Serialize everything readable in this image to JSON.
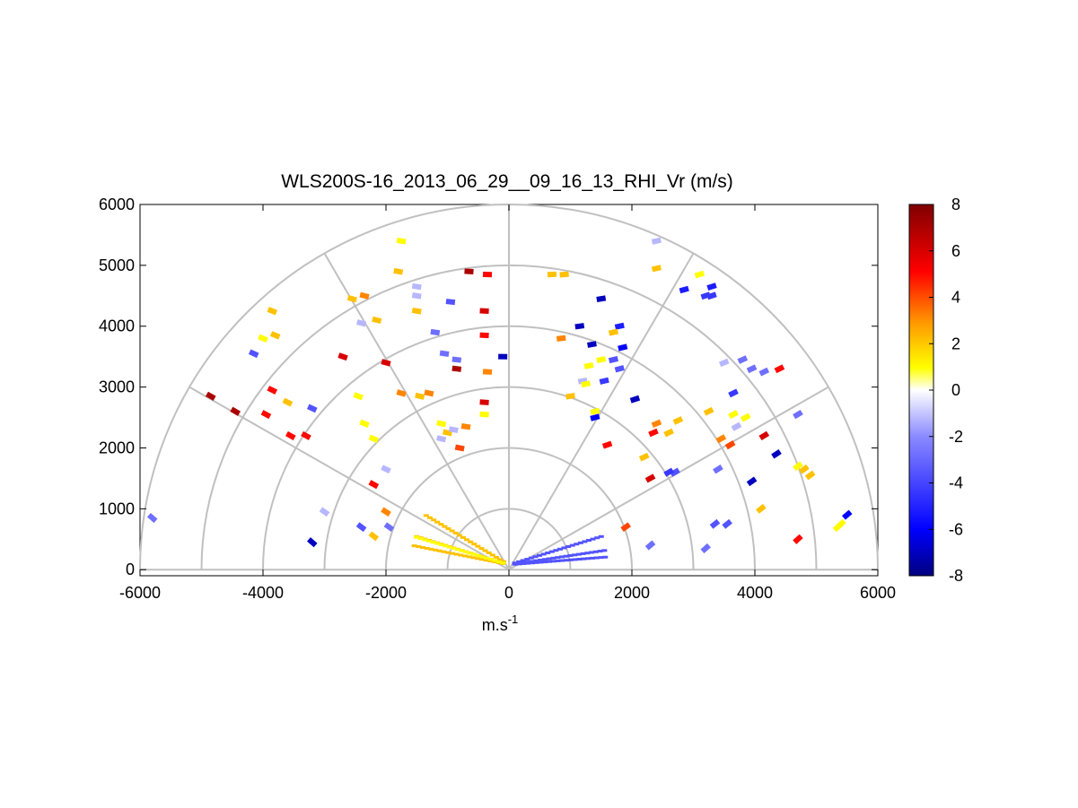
{
  "chart_data": {
    "type": "scatter",
    "title": "WLS200S-16_2013_06_29__09_16_13_RHI_Vr (m/s)",
    "xlabel": "m.s",
    "xlabel_superscript": "-1",
    "ylabel": "",
    "xlim": [
      -6000,
      6000
    ],
    "ylim": [
      -100,
      6000
    ],
    "xticks": [
      -6000,
      -4000,
      -2000,
      0,
      2000,
      4000,
      6000
    ],
    "yticks": [
      0,
      1000,
      2000,
      3000,
      4000,
      5000,
      6000
    ],
    "grid": "polar",
    "polar_rings": [
      1000,
      2000,
      3000,
      4000,
      5000,
      6000
    ],
    "polar_spokes_deg": [
      0,
      30,
      60,
      90,
      120,
      150,
      180
    ],
    "colorbar": {
      "min": -8,
      "max": 8,
      "ticks": [
        8,
        6,
        4,
        2,
        0,
        -2,
        -4,
        -6,
        -8
      ],
      "colormap": "blue-white-yellow-red",
      "stops": [
        "#00007f",
        "#0000ff",
        "#6f6fff",
        "#ffffff",
        "#ffff00",
        "#ff8c00",
        "#ff0000",
        "#7f0000"
      ]
    },
    "points": [
      [
        -5800,
        850,
        -2
      ],
      [
        -4850,
        2850,
        7
      ],
      [
        -4450,
        2600,
        7
      ],
      [
        -3850,
        2950,
        5
      ],
      [
        -3600,
        2750,
        2
      ],
      [
        -3550,
        2200,
        5
      ],
      [
        -3300,
        2200,
        5
      ],
      [
        -3200,
        2650,
        -3
      ],
      [
        -3200,
        450,
        -7
      ],
      [
        -3000,
        950,
        -1
      ],
      [
        -3950,
        2550,
        5
      ],
      [
        -4000,
        3800,
        1
      ],
      [
        -3800,
        3850,
        2
      ],
      [
        -3850,
        4250,
        2
      ],
      [
        -4150,
        3550,
        -3
      ],
      [
        -2700,
        3500,
        6
      ],
      [
        -2450,
        2850,
        1
      ],
      [
        -2350,
        2400,
        1
      ],
      [
        -2200,
        2150,
        1
      ],
      [
        -2200,
        1400,
        5
      ],
      [
        -2400,
        700,
        -3
      ],
      [
        -2200,
        550,
        2
      ],
      [
        -2000,
        950,
        3
      ],
      [
        -1950,
        700,
        -2
      ],
      [
        -2000,
        1650,
        -1
      ],
      [
        -2000,
        3400,
        6
      ],
      [
        -1750,
        2900,
        3
      ],
      [
        -1450,
        2850,
        2
      ],
      [
        -1300,
        2900,
        3
      ],
      [
        -1100,
        2400,
        1
      ],
      [
        -1000,
        2250,
        2
      ],
      [
        -900,
        2300,
        -1
      ],
      [
        -700,
        2350,
        3
      ],
      [
        -800,
        2000,
        4
      ],
      [
        -1100,
        2150,
        -1
      ],
      [
        -2550,
        4450,
        2
      ],
      [
        -2350,
        4500,
        3
      ],
      [
        -2400,
        4050,
        -1
      ],
      [
        -2150,
        4100,
        2
      ],
      [
        -1800,
        4900,
        2
      ],
      [
        -1750,
        5400,
        1
      ],
      [
        -1500,
        4250,
        2
      ],
      [
        -1200,
        3900,
        -2
      ],
      [
        -1050,
        3550,
        -2
      ],
      [
        -850,
        3450,
        -2
      ],
      [
        -850,
        3300,
        7
      ],
      [
        -950,
        4400,
        -3
      ],
      [
        -1500,
        4650,
        -1
      ],
      [
        -1500,
        4500,
        -1
      ],
      [
        -650,
        4900,
        7
      ],
      [
        -350,
        4850,
        5
      ],
      [
        -400,
        4250,
        6
      ],
      [
        -400,
        3850,
        5
      ],
      [
        -350,
        3250,
        3
      ],
      [
        -400,
        2750,
        6
      ],
      [
        -100,
        3500,
        -7
      ],
      [
        -400,
        2550,
        1
      ],
      [
        700,
        4850,
        2
      ],
      [
        900,
        4850,
        2
      ],
      [
        1500,
        4450,
        -7
      ],
      [
        1800,
        4000,
        -5
      ],
      [
        1700,
        3900,
        2
      ],
      [
        1850,
        3650,
        -6
      ],
      [
        1700,
        3450,
        -3
      ],
      [
        1350,
        3700,
        -7
      ],
      [
        1500,
        3450,
        1
      ],
      [
        1300,
        3350,
        1
      ],
      [
        1200,
        3100,
        -1
      ],
      [
        1550,
        3100,
        -4
      ],
      [
        1400,
        2600,
        1
      ],
      [
        1250,
        3050,
        1
      ],
      [
        1800,
        3300,
        -3
      ],
      [
        1000,
        2850,
        2
      ],
      [
        850,
        3800,
        3
      ],
      [
        1150,
        4000,
        -7
      ],
      [
        2400,
        2400,
        3
      ],
      [
        2350,
        2250,
        5
      ],
      [
        2050,
        2800,
        -7
      ],
      [
        1400,
        2500,
        -6
      ],
      [
        1600,
        2050,
        5
      ],
      [
        2600,
        2250,
        2
      ],
      [
        2750,
        2450,
        2
      ],
      [
        2700,
        1600,
        -3
      ],
      [
        2600,
        1600,
        -4
      ],
      [
        2300,
        1500,
        6
      ],
      [
        2200,
        1850,
        2
      ],
      [
        3250,
        2600,
        2
      ],
      [
        3650,
        2550,
        1
      ],
      [
        3850,
        2500,
        1
      ],
      [
        3450,
        2150,
        3
      ],
      [
        3600,
        2050,
        4
      ],
      [
        3700,
        2350,
        -1
      ],
      [
        3400,
        1650,
        -2
      ],
      [
        3950,
        1450,
        -7
      ],
      [
        4100,
        1000,
        2
      ],
      [
        3550,
        750,
        -3
      ],
      [
        3350,
        750,
        -3
      ],
      [
        3500,
        3400,
        -1
      ],
      [
        3650,
        2900,
        -4
      ],
      [
        3800,
        3450,
        -2
      ],
      [
        3950,
        3300,
        -2
      ],
      [
        4150,
        3250,
        -2
      ],
      [
        4400,
        3300,
        5
      ],
      [
        4150,
        2200,
        6
      ],
      [
        4350,
        1900,
        -7
      ],
      [
        4700,
        1700,
        1
      ],
      [
        4900,
        1550,
        2
      ],
      [
        4800,
        1650,
        2
      ],
      [
        5500,
        900,
        -6
      ],
      [
        5350,
        700,
        1
      ],
      [
        5400,
        750,
        1
      ],
      [
        4700,
        500,
        5
      ],
      [
        4700,
        2550,
        -2
      ],
      [
        3200,
        4500,
        -4
      ],
      [
        3300,
        4500,
        -4
      ],
      [
        3100,
        4850,
        1
      ],
      [
        2850,
        4600,
        -5
      ],
      [
        2400,
        4950,
        2
      ],
      [
        2400,
        5400,
        -1
      ],
      [
        3200,
        350,
        -2
      ],
      [
        3300,
        4650,
        -5
      ],
      [
        2300,
        400,
        -2
      ],
      [
        1900,
        700,
        4
      ]
    ]
  }
}
